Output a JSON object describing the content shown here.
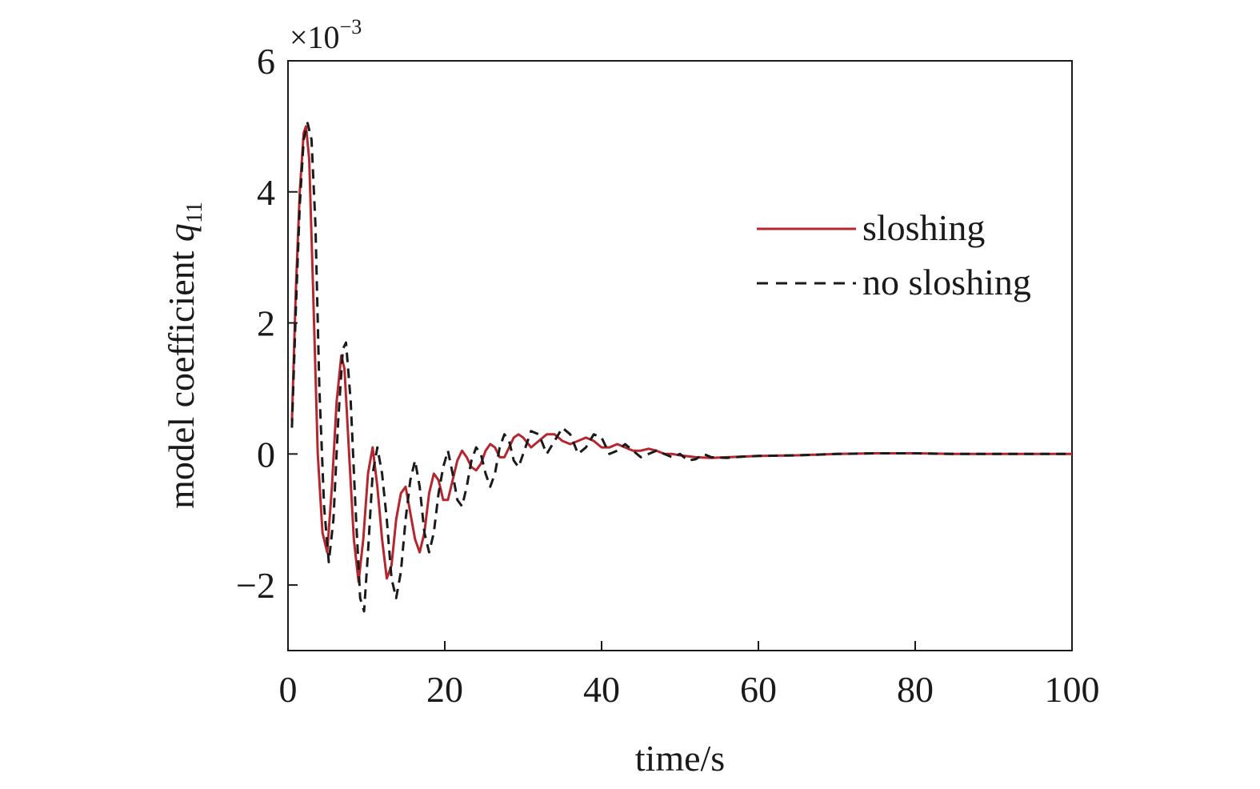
{
  "chart_data": {
    "type": "line",
    "title": "",
    "xlabel": "time/s",
    "ylabel": "model coefficient ",
    "ylabel_var": "q",
    "ylabel_sub": "11",
    "y_multiplier": "×10",
    "y_multiplier_exp": "−3",
    "xlim": [
      0,
      100
    ],
    "ylim": [
      -3,
      6
    ],
    "x_ticks": [
      0,
      20,
      40,
      60,
      80,
      100
    ],
    "x_tick_labels": [
      "0",
      "20",
      "40",
      "60",
      "80",
      "100"
    ],
    "y_ticks": [
      -2,
      0,
      2,
      4,
      6
    ],
    "y_tick_labels": [
      "−2",
      "0",
      "2",
      "4",
      "6"
    ],
    "grid": false,
    "legend_position": "upper-right",
    "series": [
      {
        "name": "sloshing",
        "color": "#b5262e",
        "style": "solid",
        "x": [
          0.5,
          1.0,
          1.5,
          2.0,
          2.3,
          2.7,
          3.2,
          3.8,
          4.4,
          5.0,
          5.6,
          6.2,
          6.8,
          7.2,
          7.8,
          8.4,
          9.0,
          9.6,
          10.2,
          10.8,
          11.4,
          12.0,
          12.6,
          13.2,
          13.8,
          14.4,
          15.0,
          15.6,
          16.2,
          16.8,
          17.4,
          18.0,
          18.6,
          19.2,
          19.8,
          20.4,
          21.0,
          21.6,
          22.2,
          22.8,
          23.4,
          24.0,
          24.6,
          25.2,
          25.8,
          26.4,
          27.0,
          27.6,
          28.2,
          28.8,
          29.4,
          30.0,
          31.0,
          32.0,
          33.0,
          34.0,
          35.0,
          36.0,
          37.0,
          38.0,
          39.0,
          40.0,
          41.0,
          42.0,
          43.0,
          44.0,
          45.0,
          46.0,
          47.0,
          48.0,
          49.0,
          50.0,
          52.0,
          54.0,
          56.0,
          58.0,
          60.0,
          65.0,
          70.0,
          75.0,
          80.0,
          85.0,
          90.0,
          95.0,
          100.0
        ],
        "y": [
          0.5,
          2.5,
          4.0,
          4.9,
          5.0,
          4.5,
          2.5,
          0.0,
          -1.2,
          -1.5,
          -0.5,
          0.8,
          1.5,
          1.3,
          0.0,
          -1.3,
          -1.95,
          -1.3,
          -0.3,
          0.1,
          -0.5,
          -1.3,
          -1.9,
          -1.7,
          -1.0,
          -0.6,
          -0.5,
          -0.9,
          -1.3,
          -1.5,
          -1.2,
          -0.6,
          -0.3,
          -0.4,
          -0.7,
          -0.7,
          -0.4,
          -0.1,
          0.05,
          -0.05,
          -0.2,
          -0.25,
          -0.15,
          0.05,
          0.15,
          0.1,
          -0.05,
          -0.05,
          0.1,
          0.25,
          0.3,
          0.25,
          0.1,
          0.2,
          0.3,
          0.3,
          0.2,
          0.15,
          0.2,
          0.25,
          0.2,
          0.1,
          0.1,
          0.15,
          0.1,
          0.05,
          0.05,
          0.08,
          0.05,
          0.0,
          0.0,
          -0.02,
          -0.05,
          -0.06,
          -0.05,
          -0.04,
          -0.03,
          -0.02,
          0.0,
          0.01,
          0.01,
          0.0,
          0.0,
          0.0,
          0.0
        ]
      },
      {
        "name": "no sloshing",
        "color": "#1a1a1a",
        "style": "dashed",
        "x": [
          0.5,
          1.0,
          1.5,
          2.0,
          2.5,
          3.0,
          3.5,
          4.0,
          4.6,
          5.2,
          5.8,
          6.4,
          7.0,
          7.4,
          8.0,
          8.6,
          9.2,
          9.7,
          10.2,
          10.8,
          11.4,
          12.0,
          12.6,
          13.2,
          13.8,
          14.4,
          15.0,
          15.6,
          16.2,
          16.8,
          17.4,
          18.0,
          18.6,
          19.2,
          19.8,
          20.4,
          21.0,
          21.6,
          22.2,
          22.8,
          23.4,
          24.0,
          24.6,
          25.2,
          25.8,
          26.4,
          27.0,
          27.6,
          28.2,
          28.8,
          29.4,
          30.0,
          31.0,
          32.0,
          33.0,
          34.0,
          35.0,
          36.0,
          37.0,
          38.0,
          39.0,
          40.0,
          41.0,
          42.0,
          43.0,
          44.0,
          45.0,
          46.0,
          47.0,
          48.0,
          49.0,
          50.0,
          51.0,
          52.0,
          53.0,
          54.0,
          56.0,
          58.0,
          60.0,
          65.0,
          70.0,
          75.0,
          80.0,
          85.0,
          90.0,
          95.0,
          100.0
        ],
        "y": [
          0.4,
          2.2,
          3.8,
          4.8,
          5.05,
          4.8,
          3.5,
          1.0,
          -0.8,
          -1.65,
          -1.0,
          0.5,
          1.6,
          1.7,
          0.8,
          -0.8,
          -2.2,
          -2.4,
          -1.5,
          -0.3,
          0.1,
          -0.3,
          -1.0,
          -1.9,
          -2.2,
          -1.8,
          -1.0,
          -0.4,
          -0.1,
          -0.5,
          -1.2,
          -1.5,
          -1.2,
          -0.6,
          -0.2,
          0.05,
          -0.3,
          -0.7,
          -0.8,
          -0.5,
          -0.1,
          0.1,
          0.0,
          -0.3,
          -0.5,
          -0.3,
          0.1,
          0.3,
          0.2,
          -0.1,
          -0.2,
          0.0,
          0.35,
          0.3,
          0.0,
          0.2,
          0.4,
          0.3,
          0.0,
          0.1,
          0.3,
          0.25,
          0.0,
          0.05,
          0.15,
          0.05,
          -0.05,
          0.0,
          0.05,
          0.0,
          -0.05,
          0.0,
          -0.1,
          -0.08,
          0.0,
          -0.05,
          -0.06,
          -0.04,
          -0.03,
          -0.02,
          0.0,
          0.01,
          0.01,
          0.0,
          0.0,
          0.0,
          0.0
        ]
      }
    ]
  }
}
